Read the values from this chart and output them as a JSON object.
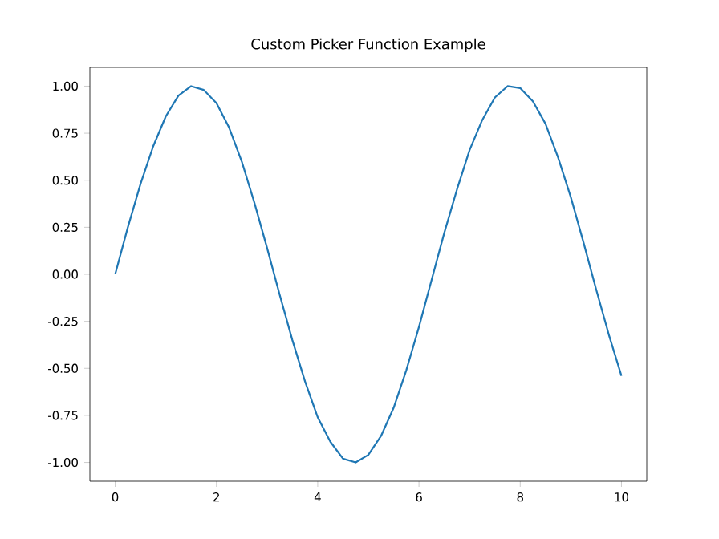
{
  "chart_data": {
    "type": "line",
    "title": "Custom Picker Function Example",
    "x": [
      0,
      0.25,
      0.5,
      0.75,
      1,
      1.25,
      1.5,
      1.75,
      2,
      2.25,
      2.5,
      2.75,
      3,
      3.25,
      3.5,
      3.75,
      4,
      4.25,
      4.5,
      4.75,
      5,
      5.25,
      5.5,
      5.75,
      6,
      6.25,
      6.5,
      6.75,
      7,
      7.25,
      7.5,
      7.75,
      8,
      8.25,
      8.5,
      8.75,
      9,
      9.25,
      9.5,
      9.75,
      10
    ],
    "series": [
      {
        "color": "#1f77b4",
        "values": [
          0,
          0.25,
          0.48,
          0.68,
          0.84,
          0.95,
          1.0,
          0.98,
          0.91,
          0.78,
          0.6,
          0.38,
          0.14,
          -0.11,
          -0.35,
          -0.57,
          -0.76,
          -0.89,
          -0.98,
          -1.0,
          -0.96,
          -0.86,
          -0.71,
          -0.51,
          -0.28,
          -0.03,
          0.22,
          0.45,
          0.66,
          0.82,
          0.94,
          1.0,
          0.99,
          0.92,
          0.8,
          0.62,
          0.41,
          0.17,
          -0.08,
          -0.32,
          -0.54
        ]
      }
    ],
    "xlim": [
      -0.5,
      10.5
    ],
    "ylim": [
      -1.1,
      1.1
    ],
    "xticks": [
      0,
      2,
      4,
      6,
      8,
      10
    ],
    "yticks": [
      {
        "value": -1,
        "label": "-1.00"
      },
      {
        "value": -0.75,
        "label": "-0.75"
      },
      {
        "value": -0.5,
        "label": "-0.50"
      },
      {
        "value": -0.25,
        "label": "-0.25"
      },
      {
        "value": 0,
        "label": "0.00"
      },
      {
        "value": 0.25,
        "label": "0.25"
      },
      {
        "value": 0.5,
        "label": "0.50"
      },
      {
        "value": 0.75,
        "label": "0.75"
      },
      {
        "value": 1,
        "label": "1.00"
      }
    ],
    "grid": false
  }
}
